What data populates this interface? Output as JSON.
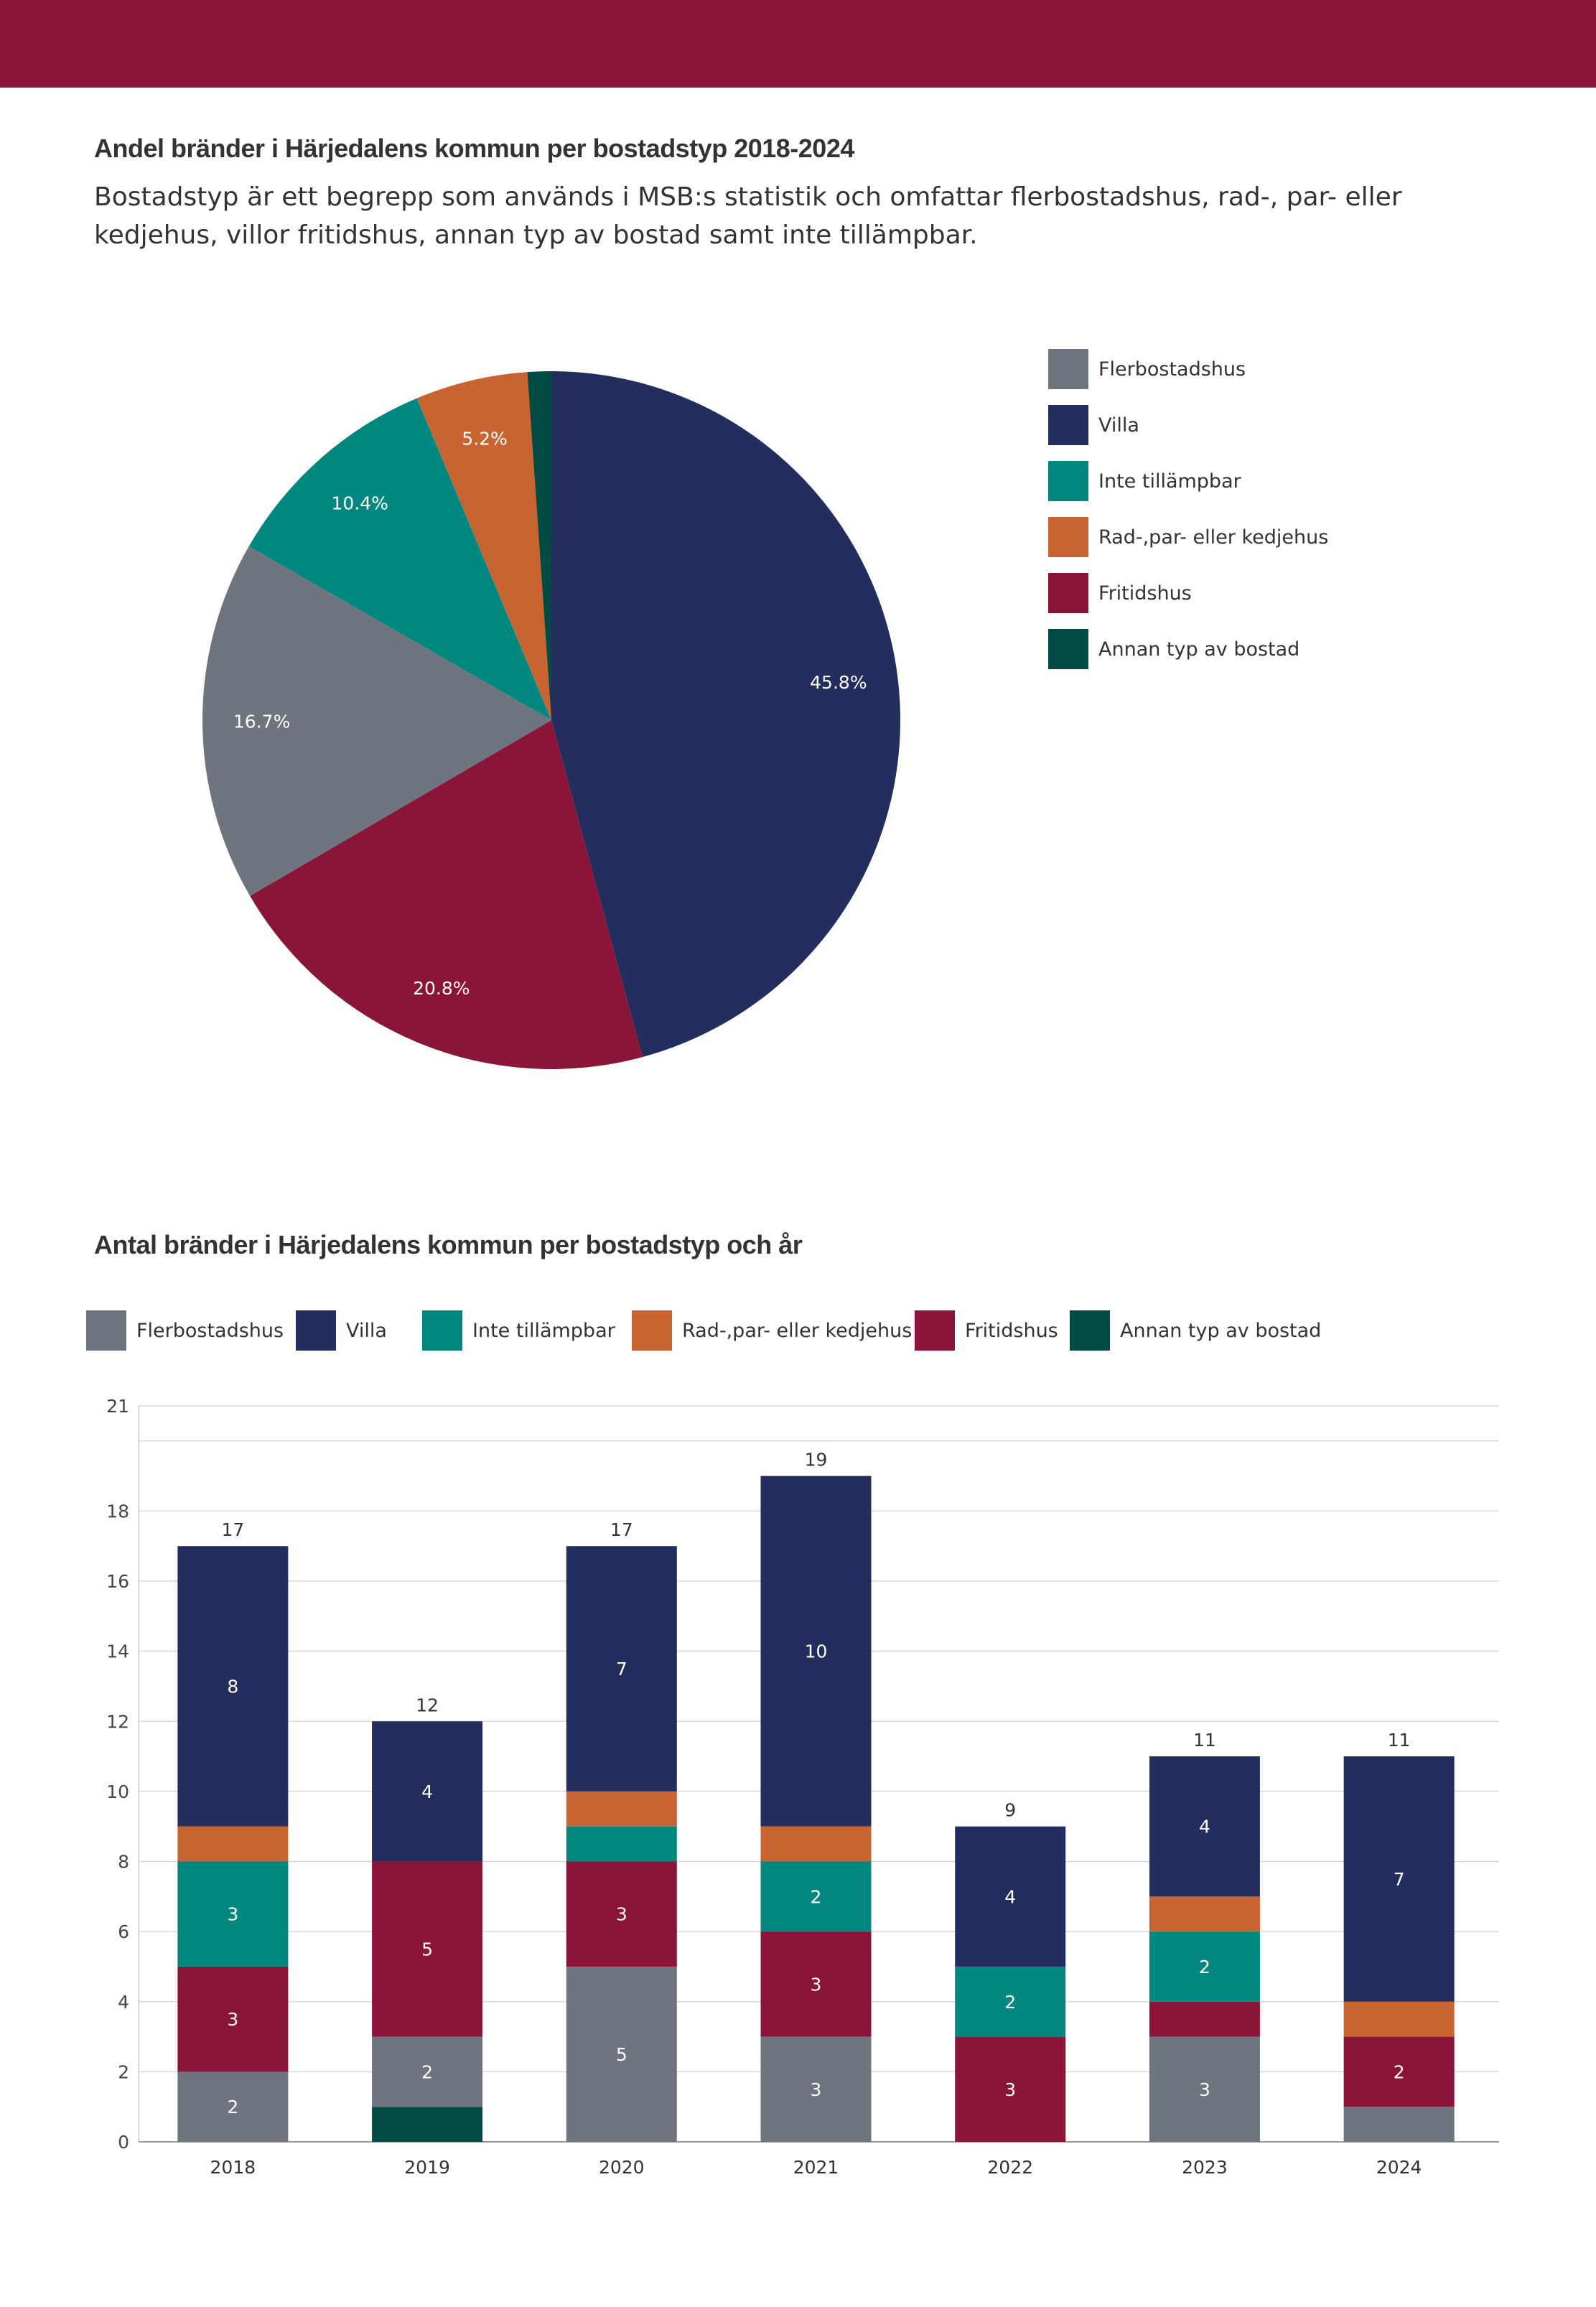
{
  "colors": {
    "banner": "#8B1538",
    "Flerbostadshus": "#6E757F",
    "Villa": "#232D5E",
    "Inte tillämpbar": "#00877F",
    "Rad-,par- eller kedjehus": "#C86432",
    "Fritidshus": "#8B1538",
    "Annan typ av bostad": "#024B45"
  },
  "pie": {
    "title": "Andel bränder i Härjedalens kommun per bostadstyp 2018-2024",
    "subtitle": "Bostadstyp är ett begrepp som används i MSB:s statistik och omfattar flerbostadshus, rad-, par- eller kedjehus, villor fritidshus, annan typ av bostad samt inte tillämpbar.",
    "legend": [
      "Flerbostadshus",
      "Villa",
      "Inte tillämpbar",
      "Rad-,par- eller kedjehus",
      "Fritidshus",
      "Annan typ av bostad"
    ]
  },
  "bar": {
    "title": "Antal bränder i Härjedalens kommun per bostadstyp och år",
    "legend": [
      "Flerbostadshus",
      "Villa",
      "Inte tillämpbar",
      "Rad-,par- eller kedjehus",
      "Fritidshus",
      "Annan typ av bostad"
    ]
  },
  "chart_data": [
    {
      "type": "pie",
      "title": "Andel bränder i Härjedalens kommun per bostadstyp 2018-2024",
      "slices": [
        {
          "name": "Villa",
          "value": 45.8,
          "label": "45.8%"
        },
        {
          "name": "Fritidshus",
          "value": 20.8,
          "label": "20.8%"
        },
        {
          "name": "Flerbostadshus",
          "value": 16.7,
          "label": "16.7%"
        },
        {
          "name": "Inte tillämpbar",
          "value": 10.4,
          "label": "10.4%"
        },
        {
          "name": "Rad-,par- eller kedjehus",
          "value": 5.2,
          "label": "5.2%"
        },
        {
          "name": "Annan typ av bostad",
          "value": 1.1,
          "label": ""
        }
      ],
      "legend_position": "right"
    },
    {
      "type": "bar",
      "stacked": true,
      "title": "Antal bränder i Härjedalens kommun per bostadstyp och år",
      "categories": [
        "2018",
        "2019",
        "2020",
        "2021",
        "2022",
        "2023",
        "2024"
      ],
      "series": [
        {
          "name": "Annan typ av bostad",
          "values": [
            0,
            1,
            0,
            0,
            0,
            0,
            0
          ]
        },
        {
          "name": "Flerbostadshus",
          "values": [
            2,
            2,
            5,
            3,
            0,
            3,
            1
          ]
        },
        {
          "name": "Fritidshus",
          "values": [
            3,
            5,
            3,
            3,
            3,
            1,
            2
          ]
        },
        {
          "name": "Inte tillämpbar",
          "values": [
            3,
            0,
            1,
            2,
            2,
            2,
            0
          ]
        },
        {
          "name": "Rad-,par- eller kedjehus",
          "values": [
            1,
            0,
            1,
            1,
            0,
            1,
            1
          ]
        },
        {
          "name": "Villa",
          "values": [
            8,
            4,
            7,
            10,
            4,
            4,
            7
          ]
        }
      ],
      "totals": [
        17,
        12,
        17,
        19,
        9,
        11,
        11
      ],
      "yticks": [
        0,
        2,
        4,
        6,
        8,
        10,
        12,
        14,
        16,
        18,
        21
      ],
      "ylim": [
        0,
        21
      ],
      "grid": true,
      "legend_position": "top"
    }
  ]
}
